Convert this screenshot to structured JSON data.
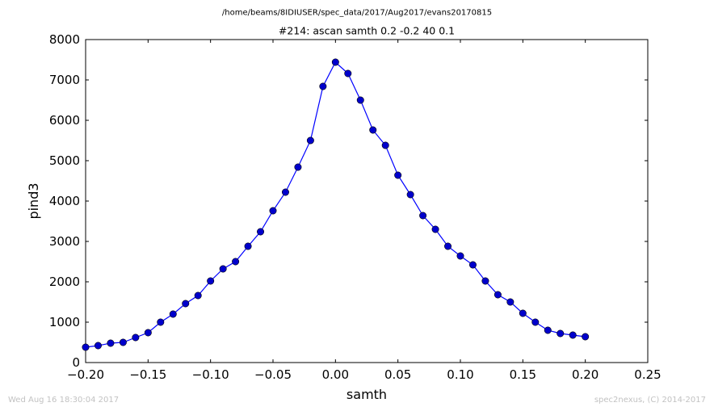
{
  "header": {
    "path": "/home/beams/8IDIUSER/spec_data/2017/Aug2017/evans20170815",
    "title": "#214: ascan  samth 0.2 -0.2  40 0.1"
  },
  "footer": {
    "timestamp": "Wed Aug 16 18:30:04 2017",
    "credit": "spec2nexus, (C) 2014-2017"
  },
  "colors": {
    "line": "#0000ff",
    "marker": "#0000cc"
  },
  "chart_data": {
    "type": "line",
    "title": "#214: ascan  samth 0.2 -0.2  40 0.1",
    "xlabel": "samth",
    "ylabel": "pind3",
    "xlim": [
      -0.2,
      0.25
    ],
    "ylim": [
      0,
      8000
    ],
    "xticks": [
      -0.2,
      -0.15,
      -0.1,
      -0.05,
      0.0,
      0.05,
      0.1,
      0.15,
      0.2,
      0.25
    ],
    "xtick_labels": [
      "−0.20",
      "−0.15",
      "−0.10",
      "−0.05",
      "0.00",
      "0.05",
      "0.10",
      "0.15",
      "0.20",
      "0.25"
    ],
    "yticks": [
      0,
      1000,
      2000,
      3000,
      4000,
      5000,
      6000,
      7000,
      8000
    ],
    "ytick_labels": [
      "0",
      "1000",
      "2000",
      "3000",
      "4000",
      "5000",
      "6000",
      "7000",
      "8000"
    ],
    "grid": false,
    "series": [
      {
        "x": [
          -0.2,
          -0.19,
          -0.18,
          -0.17,
          -0.16,
          -0.15,
          -0.14,
          -0.13,
          -0.12,
          -0.11,
          -0.1,
          -0.09,
          -0.08,
          -0.07,
          -0.06,
          -0.05,
          -0.04,
          -0.03,
          -0.02,
          -0.01,
          0.0,
          0.01,
          0.02,
          0.03,
          0.04,
          0.05,
          0.06,
          0.07,
          0.08,
          0.09,
          0.1,
          0.11,
          0.12,
          0.13,
          0.14,
          0.15,
          0.16,
          0.17,
          0.18,
          0.19,
          0.2
        ],
        "y": [
          380,
          420,
          480,
          500,
          620,
          740,
          1000,
          1200,
          1460,
          1660,
          2020,
          2320,
          2500,
          2880,
          3240,
          3760,
          4220,
          4840,
          5500,
          6840,
          7440,
          7160,
          6500,
          5760,
          5380,
          4640,
          4160,
          3640,
          3300,
          2880,
          2640,
          2420,
          2020,
          1680,
          1500,
          1220,
          1000,
          800,
          720,
          680,
          640
        ]
      }
    ]
  }
}
